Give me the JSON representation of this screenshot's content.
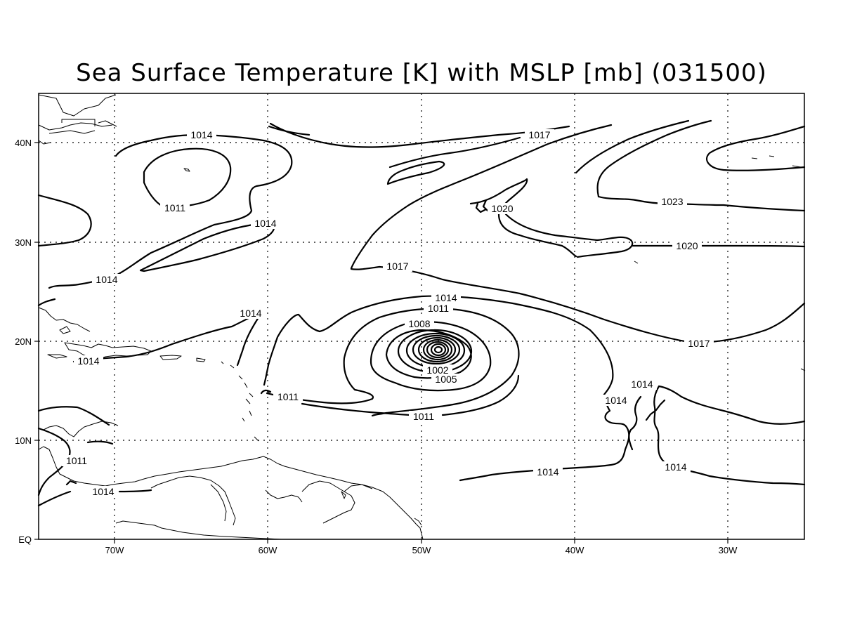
{
  "title": "Sea Surface Temperature [K] with MSLP [mb] (031500)",
  "map": {
    "longitude_labels": [
      "70W",
      "60W",
      "50W",
      "40W",
      "30W"
    ],
    "latitude_labels": [
      "40N",
      "30N",
      "20N",
      "10N",
      "EQ"
    ],
    "contour_labels": [
      {
        "id": "c1014-nw",
        "text": "1014"
      },
      {
        "id": "c1011-nw",
        "text": "1011"
      },
      {
        "id": "c1014-band",
        "text": "1014"
      },
      {
        "id": "c1014-w",
        "text": "1014"
      },
      {
        "id": "c1014-car",
        "text": "1014"
      },
      {
        "id": "c1014-carib-n",
        "text": "1014"
      },
      {
        "id": "c1011-carib",
        "text": "1011"
      },
      {
        "id": "c1014-sa",
        "text": "1014"
      },
      {
        "id": "c1017-n",
        "text": "1017"
      },
      {
        "id": "c1020-n",
        "text": "1020"
      },
      {
        "id": "c1023-ne",
        "text": "1023"
      },
      {
        "id": "c1020-e",
        "text": "1020"
      },
      {
        "id": "c1017-mid",
        "text": "1017"
      },
      {
        "id": "c1014-storm",
        "text": "1014"
      },
      {
        "id": "c1011-storm-n",
        "text": "1011"
      },
      {
        "id": "c1008-storm",
        "text": "1008"
      },
      {
        "id": "c1002-storm",
        "text": "1002"
      },
      {
        "id": "c1005-storm",
        "text": "1005"
      },
      {
        "id": "c1011-storm-w",
        "text": "1011"
      },
      {
        "id": "c1011-storm-s",
        "text": "1011"
      },
      {
        "id": "c1017-e",
        "text": "1017"
      },
      {
        "id": "c1014-se1",
        "text": "1014"
      },
      {
        "id": "c1014-se2",
        "text": "1014"
      },
      {
        "id": "c1014-s",
        "text": "1014"
      },
      {
        "id": "c1014-se3",
        "text": "1014"
      }
    ]
  }
}
